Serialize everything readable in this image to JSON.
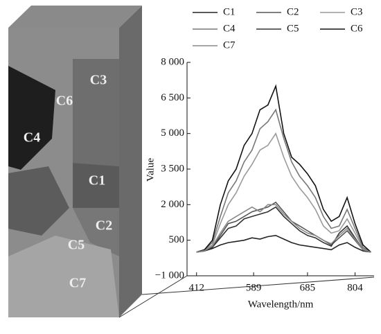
{
  "chart_data": {
    "type": "line",
    "ylabel": "Value",
    "xlabel": "Wavelength/nm",
    "x": [
      0,
      5,
      10,
      15,
      20,
      25,
      30,
      35,
      40,
      45,
      50,
      55,
      60,
      65,
      70,
      75,
      80,
      85,
      90,
      95,
      100,
      105,
      110
    ],
    "xlim": [
      -6,
      112
    ],
    "xticks": [
      {
        "value": 0,
        "label": "412"
      },
      {
        "value": 36,
        "label": "589"
      },
      {
        "value": 70,
        "label": "685"
      },
      {
        "value": 100,
        "label": "804"
      }
    ],
    "ylim": [
      -1000,
      8000
    ],
    "yticks": [
      {
        "value": -1000,
        "label": "−1 000"
      },
      500,
      {
        "value": 2000,
        "label": "2 000"
      },
      {
        "value": 3500,
        "label": "3 500"
      },
      {
        "value": 5000,
        "label": "5 000"
      },
      {
        "value": 6500,
        "label": "6 500"
      },
      {
        "value": 8000,
        "label": "8 000"
      }
    ],
    "series": [
      {
        "name": "C1",
        "color": "#222222",
        "values": [
          0,
          50,
          150,
          300,
          400,
          450,
          500,
          600,
          550,
          650,
          700,
          550,
          400,
          300,
          250,
          200,
          150,
          100,
          300,
          400,
          200,
          50,
          0
        ]
      },
      {
        "name": "C2",
        "color": "#555555",
        "values": [
          0,
          50,
          200,
          700,
          1200,
          1300,
          1500,
          1700,
          1800,
          1900,
          2100,
          1700,
          1300,
          1100,
          900,
          700,
          500,
          300,
          600,
          900,
          500,
          100,
          0
        ]
      },
      {
        "name": "C3",
        "color": "#9a9a9a",
        "values": [
          0,
          80,
          300,
          1200,
          2000,
          2500,
          3200,
          3700,
          4300,
          4500,
          5000,
          4000,
          3200,
          2700,
          2300,
          1800,
          1100,
          800,
          900,
          1400,
          800,
          150,
          0
        ]
      },
      {
        "name": "C4",
        "color": "#777777",
        "values": [
          0,
          100,
          400,
          1500,
          2500,
          3000,
          3800,
          4300,
          5200,
          5500,
          6000,
          4800,
          3800,
          3200,
          2800,
          2300,
          1500,
          1000,
          1100,
          1800,
          1000,
          200,
          0
        ]
      },
      {
        "name": "C5",
        "color": "#333333",
        "values": [
          0,
          50,
          200,
          600,
          1000,
          1100,
          1400,
          1500,
          1600,
          1700,
          1900,
          1500,
          1200,
          900,
          700,
          600,
          400,
          250,
          800,
          1100,
          600,
          100,
          0
        ]
      },
      {
        "name": "C6",
        "color": "#111111",
        "values": [
          0,
          100,
          500,
          2000,
          3000,
          3500,
          4500,
          5000,
          6000,
          6200,
          7000,
          5000,
          4000,
          3700,
          3300,
          2800,
          1800,
          1300,
          1500,
          2300,
          1200,
          300,
          0
        ]
      },
      {
        "name": "C7",
        "color": "#888888",
        "values": [
          0,
          60,
          250,
          800,
          1300,
          1500,
          1700,
          1900,
          1700,
          2000,
          2000,
          1600,
          1300,
          1000,
          800,
          700,
          500,
          350,
          700,
          1000,
          550,
          100,
          0
        ]
      }
    ]
  },
  "image_labels": [
    "C3",
    "C6",
    "C4",
    "C1",
    "C2",
    "C5",
    "C7"
  ]
}
